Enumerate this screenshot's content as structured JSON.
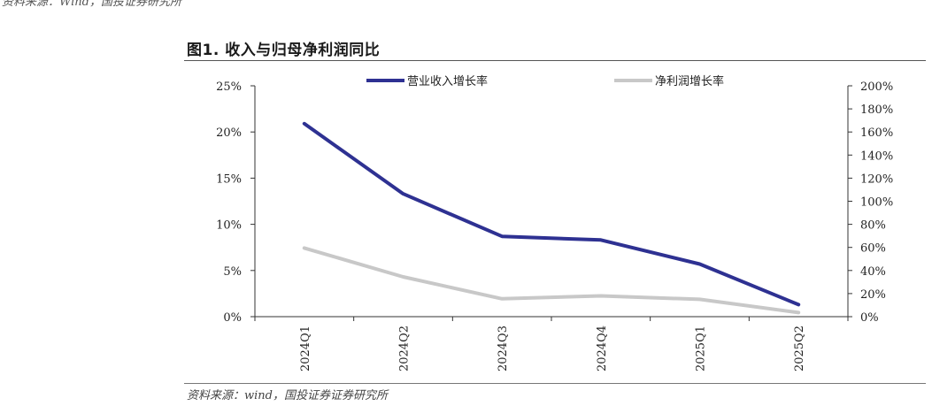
{
  "header_cut_text": "资料来源：Wind，国投证券研究所",
  "figure_title": "图1. 收入与归母净利润同比",
  "source_note": "资料来源：wind，国投证券证券研究所",
  "chart_data": {
    "type": "line",
    "categories": [
      "2024Q1",
      "2024Q2",
      "2024Q3",
      "2024Q4",
      "2025Q1",
      "2025Q2"
    ],
    "series": [
      {
        "name": "营业收入增长率",
        "axis": "left",
        "color": "#2e3192",
        "values": [
          20.9,
          13.3,
          8.7,
          8.3,
          5.7,
          1.3
        ]
      },
      {
        "name": "净利润增长率",
        "axis": "right",
        "color": "#c8c8c8",
        "values": [
          59.5,
          34.5,
          15.5,
          18,
          15,
          3.5
        ]
      }
    ],
    "left_axis": {
      "min": 0,
      "max": 25,
      "step": 5,
      "tick_labels": [
        "0%",
        "5%",
        "10%",
        "15%",
        "20%",
        "25%"
      ]
    },
    "right_axis": {
      "min": 0,
      "max": 200,
      "step": 20,
      "tick_labels": [
        "0%",
        "20%",
        "40%",
        "60%",
        "80%",
        "100%",
        "120%",
        "140%",
        "160%",
        "180%",
        "200%"
      ]
    },
    "legend_position": "top",
    "grid": false
  }
}
